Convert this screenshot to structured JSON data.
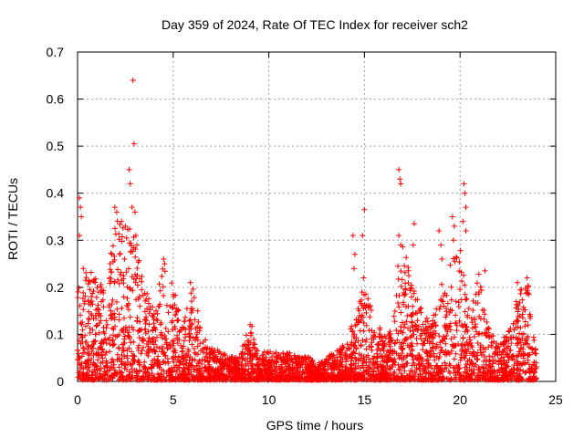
{
  "chart_data": {
    "type": "scatter",
    "title": "Day 359 of 2024, Rate Of TEC Index for receiver sch2",
    "xlabel": "GPS time / hours",
    "ylabel": "ROTI / TECUs",
    "xlim": [
      0,
      25
    ],
    "ylim": [
      0,
      0.7
    ],
    "xticks": [
      0,
      5,
      10,
      15,
      20,
      25
    ],
    "xtick_labels": [
      "0",
      "5",
      "10",
      "15",
      "20",
      "25"
    ],
    "yticks": [
      0,
      0.1,
      0.2,
      0.3,
      0.4,
      0.5,
      0.6,
      0.7
    ],
    "ytick_labels": [
      "0",
      "0.1",
      "0.2",
      "0.3",
      "0.4",
      "0.5",
      "0.6",
      "0.7"
    ],
    "grid": true,
    "marker": "+",
    "color": "#ff0000",
    "envelope": {
      "x": [
        0,
        0.5,
        1,
        1.5,
        2,
        2.5,
        3,
        3.5,
        4,
        4.5,
        5,
        5.5,
        6,
        6.5,
        7,
        7.5,
        8,
        8.5,
        9,
        9.5,
        10,
        10.5,
        11,
        11.5,
        12,
        12.5,
        13,
        13.5,
        14,
        14.5,
        15,
        15.5,
        16,
        16.5,
        17,
        17.5,
        18,
        18.5,
        19,
        19.5,
        20,
        20.5,
        21,
        21.5,
        22,
        22.5,
        23,
        23.5,
        24
      ],
      "y": [
        0.2,
        0.24,
        0.22,
        0.2,
        0.34,
        0.36,
        0.3,
        0.2,
        0.15,
        0.25,
        0.2,
        0.12,
        0.22,
        0.1,
        0.07,
        0.06,
        0.05,
        0.05,
        0.13,
        0.06,
        0.06,
        0.06,
        0.06,
        0.05,
        0.05,
        0.04,
        0.05,
        0.06,
        0.08,
        0.15,
        0.2,
        0.13,
        0.1,
        0.12,
        0.3,
        0.2,
        0.15,
        0.12,
        0.2,
        0.25,
        0.28,
        0.15,
        0.23,
        0.12,
        0.08,
        0.1,
        0.18,
        0.22,
        0.05
      ]
    },
    "outliers": [
      {
        "x": 0.1,
        "y": 0.39
      },
      {
        "x": 0.15,
        "y": 0.37
      },
      {
        "x": 0.1,
        "y": 0.31
      },
      {
        "x": 0.2,
        "y": 0.35
      },
      {
        "x": 0.3,
        "y": 0.24
      },
      {
        "x": 1.8,
        "y": 0.27
      },
      {
        "x": 1.95,
        "y": 0.37
      },
      {
        "x": 2.05,
        "y": 0.36
      },
      {
        "x": 2.3,
        "y": 0.34
      },
      {
        "x": 2.5,
        "y": 0.33
      },
      {
        "x": 2.7,
        "y": 0.45
      },
      {
        "x": 2.75,
        "y": 0.42
      },
      {
        "x": 2.85,
        "y": 0.37
      },
      {
        "x": 2.9,
        "y": 0.64
      },
      {
        "x": 2.95,
        "y": 0.505
      },
      {
        "x": 3.0,
        "y": 0.36
      },
      {
        "x": 3.05,
        "y": 0.31
      },
      {
        "x": 3.1,
        "y": 0.29
      },
      {
        "x": 4.5,
        "y": 0.26
      },
      {
        "x": 4.55,
        "y": 0.25
      },
      {
        "x": 5.9,
        "y": 0.21
      },
      {
        "x": 14.4,
        "y": 0.31
      },
      {
        "x": 14.5,
        "y": 0.27
      },
      {
        "x": 14.45,
        "y": 0.24
      },
      {
        "x": 14.9,
        "y": 0.31
      },
      {
        "x": 15.0,
        "y": 0.365
      },
      {
        "x": 14.95,
        "y": 0.22
      },
      {
        "x": 16.8,
        "y": 0.45
      },
      {
        "x": 16.85,
        "y": 0.43
      },
      {
        "x": 16.9,
        "y": 0.42
      },
      {
        "x": 16.8,
        "y": 0.31
      },
      {
        "x": 16.9,
        "y": 0.29
      },
      {
        "x": 16.75,
        "y": 0.245
      },
      {
        "x": 17.3,
        "y": 0.235
      },
      {
        "x": 17.6,
        "y": 0.335
      },
      {
        "x": 17.55,
        "y": 0.29
      },
      {
        "x": 18.9,
        "y": 0.32
      },
      {
        "x": 19.0,
        "y": 0.29
      },
      {
        "x": 19.05,
        "y": 0.26
      },
      {
        "x": 19.6,
        "y": 0.35
      },
      {
        "x": 19.7,
        "y": 0.33
      },
      {
        "x": 19.65,
        "y": 0.3
      },
      {
        "x": 20.2,
        "y": 0.42
      },
      {
        "x": 20.25,
        "y": 0.4
      },
      {
        "x": 20.3,
        "y": 0.37
      },
      {
        "x": 20.15,
        "y": 0.34
      },
      {
        "x": 20.3,
        "y": 0.32
      },
      {
        "x": 21.3,
        "y": 0.235
      },
      {
        "x": 23.0,
        "y": 0.21
      },
      {
        "x": 23.5,
        "y": 0.22
      },
      {
        "x": 23.55,
        "y": 0.2
      },
      {
        "x": 23.6,
        "y": 0.185
      }
    ]
  }
}
